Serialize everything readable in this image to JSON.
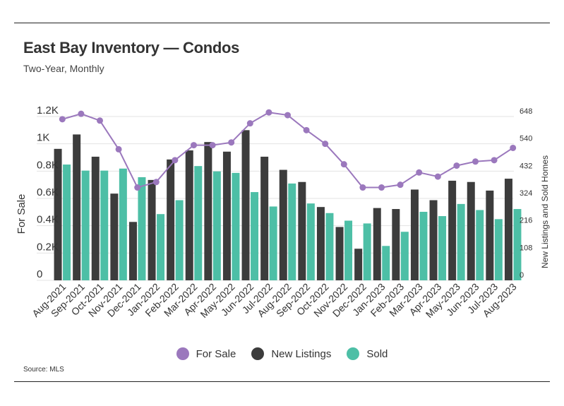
{
  "header": {
    "title": "East Bay Inventory — Condos",
    "subtitle": "Two-Year, Monthly"
  },
  "footer": {
    "source": "Source: MLS"
  },
  "colors": {
    "for_sale": "#9b78bd",
    "new_listings": "#3c3c3c",
    "sold": "#4dbfa6",
    "grid": "#e3e3e3",
    "text": "#333333"
  },
  "chart_data": {
    "type": "bar",
    "categories": [
      "Aug-2021",
      "Sep-2021",
      "Oct-2021",
      "Nov-2021",
      "Dec-2021",
      "Jan-2022",
      "Feb-2022",
      "Mar-2022",
      "Apr-2022",
      "May-2022",
      "Jun-2022",
      "Jul-2022",
      "Aug-2022",
      "Sep-2022",
      "Oct-2022",
      "Nov-2022",
      "Dec-2022",
      "Jan-2023",
      "Feb-2023",
      "Mar-2023",
      "Apr-2023",
      "May-2023",
      "Jun-2023",
      "Jul-2023",
      "Aug-2023"
    ],
    "series": [
      {
        "name": "For Sale",
        "type": "line",
        "axis": "left",
        "values": [
          1180,
          1220,
          1170,
          960,
          680,
          720,
          880,
          990,
          990,
          1010,
          1150,
          1230,
          1210,
          1100,
          1000,
          850,
          680,
          680,
          700,
          790,
          760,
          840,
          870,
          880,
          970
        ]
      },
      {
        "name": "New Listings",
        "type": "bar",
        "axis": "right",
        "values": [
          520,
          577,
          489,
          343,
          231,
          397,
          478,
          514,
          547,
          509,
          594,
          489,
          437,
          389,
          290,
          211,
          125,
          286,
          282,
          359,
          317,
          394,
          389,
          355,
          402
        ]
      },
      {
        "name": "Sold",
        "type": "bar",
        "axis": "right",
        "values": [
          458,
          434,
          434,
          442,
          408,
          262,
          317,
          452,
          431,
          425,
          349,
          292,
          383,
          304,
          266,
          236,
          225,
          136,
          192,
          271,
          254,
          302,
          278,
          242,
          282
        ]
      }
    ],
    "y_left": {
      "label": "For Sale",
      "ticks": [
        "0",
        "0.2K",
        "0.4K",
        "0.6K",
        "0.8K",
        "1K",
        "1.2K"
      ],
      "range": [
        0,
        1200
      ]
    },
    "y_right": {
      "label": "New Listings and Sold Homes",
      "ticks": [
        "0",
        "108",
        "216",
        "324",
        "432",
        "540",
        "648"
      ],
      "range": [
        0,
        648
      ]
    },
    "grid": true,
    "legend_position": "bottom-center"
  }
}
